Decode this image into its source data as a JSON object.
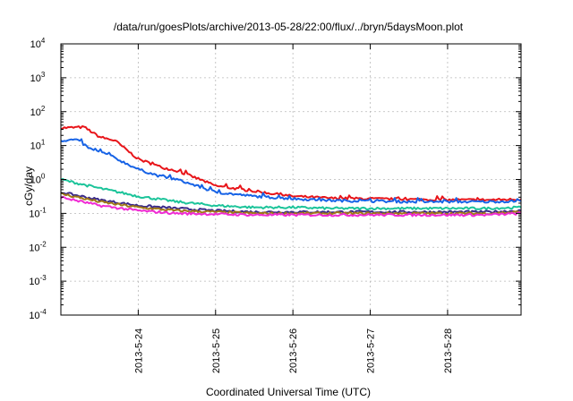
{
  "chart_data": {
    "type": "line",
    "title": "/data/run/goesPlots/archive/2013-05-28/22:00/flux/../bryn/5daysMoon.plot",
    "xlabel": "Coordinated Universal Time (UTC)",
    "ylabel": "cGy/day",
    "yscale": "log",
    "ylim": [
      0.0001,
      10000
    ],
    "xlim": [
      23.0,
      28.95
    ],
    "y_ticks": [
      {
        "value": 0.0001,
        "base": "10",
        "exp": "-4"
      },
      {
        "value": 0.001,
        "base": "10",
        "exp": "-3"
      },
      {
        "value": 0.01,
        "base": "10",
        "exp": "-2"
      },
      {
        "value": 0.1,
        "base": "10",
        "exp": "-1"
      },
      {
        "value": 1,
        "base": "10",
        "exp": "0"
      },
      {
        "value": 10,
        "base": "10",
        "exp": "1"
      },
      {
        "value": 100,
        "base": "10",
        "exp": "2"
      },
      {
        "value": 1000,
        "base": "10",
        "exp": "3"
      },
      {
        "value": 10000,
        "base": "10",
        "exp": "4"
      }
    ],
    "x_ticks": [
      {
        "value": 24,
        "label": "2013-5-24"
      },
      {
        "value": 25,
        "label": "2013-5-25"
      },
      {
        "value": 26,
        "label": "2013-5-26"
      },
      {
        "value": 27,
        "label": "2013-5-27"
      },
      {
        "value": 28,
        "label": "2013-5-28"
      }
    ],
    "grid": true,
    "x_unit_note": "day of May 2013",
    "series": [
      {
        "color": "#e8151a",
        "x": [
          23.0,
          23.3,
          23.5,
          23.7,
          24.0,
          24.3,
          24.5,
          24.8,
          25.0,
          25.5,
          26.0,
          26.5,
          27.0,
          27.5,
          28.0,
          28.5,
          28.95
        ],
        "values": [
          33,
          35,
          18,
          14,
          4.0,
          2.3,
          1.8,
          1.0,
          0.65,
          0.45,
          0.32,
          0.28,
          0.27,
          0.26,
          0.25,
          0.25,
          0.26
        ]
      },
      {
        "color": "#1763e6",
        "x": [
          23.0,
          23.2,
          23.4,
          23.6,
          24.0,
          24.3,
          24.5,
          24.8,
          25.0,
          25.5,
          26.0,
          26.5,
          27.0,
          27.5,
          28.0,
          28.5,
          28.95
        ],
        "values": [
          14,
          15,
          7.5,
          5.5,
          2.0,
          1.2,
          1.0,
          0.6,
          0.42,
          0.32,
          0.27,
          0.24,
          0.23,
          0.22,
          0.22,
          0.22,
          0.23
        ]
      },
      {
        "color": "#1cc49a",
        "x": [
          23.0,
          23.5,
          24.0,
          24.5,
          25.0,
          25.5,
          26.0,
          26.5,
          27.0,
          27.5,
          28.0,
          28.5,
          28.95
        ],
        "values": [
          1.0,
          0.55,
          0.32,
          0.22,
          0.17,
          0.15,
          0.15,
          0.14,
          0.14,
          0.14,
          0.14,
          0.14,
          0.15
        ]
      },
      {
        "color": "#3a2a8a",
        "x": [
          23.0,
          23.5,
          24.0,
          24.5,
          25.0,
          25.5,
          26.0,
          26.5,
          27.0,
          27.5,
          28.0,
          28.5,
          28.95
        ],
        "values": [
          0.42,
          0.25,
          0.17,
          0.14,
          0.12,
          0.11,
          0.11,
          0.11,
          0.11,
          0.11,
          0.11,
          0.11,
          0.12
        ]
      },
      {
        "color": "#a07818",
        "x": [
          23.0,
          23.5,
          24.0,
          24.5,
          25.0,
          25.5,
          26.0,
          26.5,
          27.0,
          27.5,
          28.0,
          28.5,
          28.95
        ],
        "values": [
          0.38,
          0.22,
          0.15,
          0.12,
          0.11,
          0.1,
          0.1,
          0.1,
          0.1,
          0.1,
          0.1,
          0.1,
          0.11
        ]
      },
      {
        "color": "#f02ad4",
        "x": [
          23.0,
          23.5,
          24.0,
          24.5,
          25.0,
          25.5,
          26.0,
          26.5,
          27.0,
          27.5,
          28.0,
          28.5,
          28.95
        ],
        "values": [
          0.3,
          0.17,
          0.12,
          0.1,
          0.095,
          0.09,
          0.09,
          0.09,
          0.09,
          0.09,
          0.09,
          0.09,
          0.1
        ]
      }
    ]
  }
}
